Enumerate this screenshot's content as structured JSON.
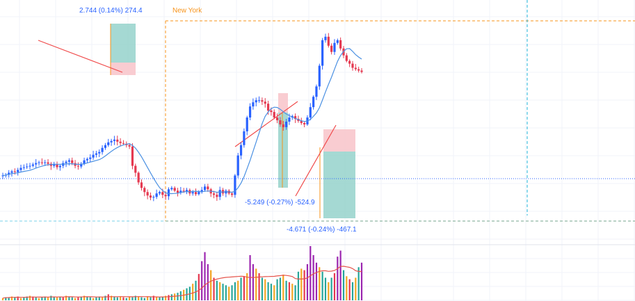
{
  "annotations": {
    "session_label": "New York",
    "measure_up": "2.744 (0.14%) 274.4",
    "measure_mid": "-5.249 (-0.27%) -524.9",
    "measure_low": "-4.671 (-0.24%) -467.1"
  },
  "colors": {
    "up_candle": "#2962ff",
    "down_candle": "#e53950",
    "ma_line": "#4a90e2",
    "session_line": "#f7931a",
    "crosshair": "#1fb4d9",
    "trend_line": "#f04a4a",
    "volume_ma": "#e5534b",
    "volume_palette": [
      "#26a69a",
      "#f4a623",
      "#9c27b0",
      "#e53950"
    ],
    "grid": "#f0f3fa",
    "position_profit": "#8ed0c8",
    "position_loss": "#f8c6cc"
  },
  "chart_data": {
    "type": "candlestick",
    "series_count": 120,
    "has_volume": true,
    "has_moving_average": true,
    "grid": true,
    "legend": "none",
    "closes": [
      66,
      67,
      70,
      72,
      71,
      74,
      77,
      78,
      79,
      80,
      82,
      84,
      85,
      84,
      85,
      83,
      80,
      82,
      78,
      80,
      84,
      86,
      88,
      84,
      80,
      79,
      83,
      88,
      90,
      92,
      96,
      98,
      100,
      106,
      110,
      114,
      116,
      118,
      115,
      113,
      112,
      110,
      108,
      80,
      70,
      56,
      48,
      42,
      37,
      34,
      35,
      40,
      42,
      38,
      36,
      46,
      48,
      44,
      41,
      44,
      43,
      45,
      40,
      42,
      39,
      42,
      45,
      50,
      46,
      40,
      38,
      35,
      45,
      40,
      44,
      40,
      38,
      66,
      95,
      110,
      130,
      150,
      166,
      172,
      175,
      175,
      173,
      170,
      160,
      158,
      150,
      146,
      140,
      136,
      144,
      150,
      152,
      148,
      145,
      142,
      140,
      150,
      165,
      180,
      195,
      225,
      262,
      267,
      254,
      245,
      258,
      262,
      250,
      240,
      232,
      228,
      222,
      220,
      218,
      216
    ],
    "volume_levels": [
      3,
      4,
      4,
      5,
      4,
      5,
      3,
      4,
      5,
      6,
      5,
      4,
      3,
      4,
      5,
      4,
      6,
      5,
      4,
      5,
      4,
      6,
      5,
      4,
      3,
      4,
      5,
      6,
      5,
      4,
      3,
      4,
      5,
      4,
      6,
      8,
      6,
      5,
      4,
      5,
      4,
      3,
      5,
      4,
      6,
      5,
      4,
      3,
      5,
      4,
      6,
      5,
      4,
      5,
      6,
      7,
      8,
      9,
      10,
      12,
      14,
      16,
      18,
      22,
      26,
      35,
      52,
      64,
      48,
      40,
      30,
      26,
      24,
      22,
      20,
      18,
      20,
      24,
      26,
      30,
      32,
      36,
      60,
      48,
      42,
      36,
      30,
      28,
      24,
      22,
      20,
      28,
      30,
      34,
      26,
      24,
      22,
      20,
      38,
      42,
      40,
      48,
      72,
      60,
      50,
      44,
      38,
      30,
      24,
      30,
      36,
      58,
      66,
      40,
      32,
      28,
      24,
      30,
      44,
      50
    ]
  }
}
